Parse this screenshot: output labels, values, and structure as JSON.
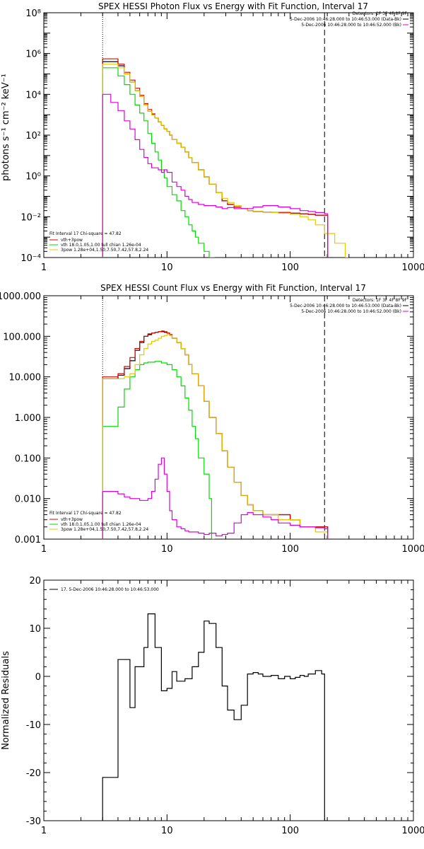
{
  "colors": {
    "data": "#000000",
    "total": "#e00000",
    "thermal": "#00dd00",
    "powerlaw": "#e6c800",
    "background": "#dd00dd",
    "frame": "#000000"
  },
  "chart_data": [
    {
      "type": "line",
      "title": "SPEX HESSI Photon Flux vs Energy with Fit Function, Interval 17",
      "xlabel": "",
      "ylabel": "photons s⁻¹ cm⁻² keV⁻¹",
      "xscale": "log",
      "yscale": "log",
      "xlim": [
        1,
        1000
      ],
      "ylim": [
        0.0001,
        100000000
      ],
      "xticks": [
        1,
        10,
        100,
        1000
      ],
      "xtick_labels": [
        "1",
        "10",
        "100",
        "1000"
      ],
      "yticks": [
        0.0001,
        0.01,
        1,
        100,
        10000,
        1000000,
        100000000
      ],
      "ytick_labels": [
        "10⁻⁴",
        "10⁻²",
        "10⁰",
        "10²",
        "10⁴",
        "10⁶",
        "10⁸"
      ],
      "energy_range": [
        3,
        190
      ],
      "legend_top_right": [
        "Detectors: 1F 3F 4F 8F 9F",
        "5-Dec-2006 10:46:28.000 to 10:46:53.000 (Data-Bk)",
        "5-Dec-2006 10:46:28.000 to 10:46:52.000 (Bk)"
      ],
      "legend_bottom_left": [
        "Fit Interval 17   Chi-square = 47.82",
        "vth+3pow",
        "vth 18.0,1.05,1.00  full chian 1.26e-04",
        "3pow 1.28e+04,1.50,7.50,7.42,57.8,2.24"
      ],
      "series": [
        {
          "name": "Data-Bk",
          "color": "#000000",
          "x": [
            3,
            3.5,
            4,
            4.5,
            5,
            5.5,
            6,
            6.5,
            7,
            7.5,
            8,
            8.5,
            9,
            9.5,
            10,
            10.5,
            11,
            12,
            13,
            14,
            15,
            16,
            18,
            20,
            22,
            25,
            28,
            31,
            35,
            40,
            45,
            50,
            60,
            70,
            80,
            100,
            120,
            140,
            160,
            190
          ],
          "values": [
            400000,
            400000,
            250000,
            100000,
            40000,
            15000,
            8000,
            3000,
            1500,
            1000,
            700,
            450,
            300,
            200,
            150,
            100,
            60,
            40,
            25,
            15,
            8,
            4.5,
            2,
            0.9,
            0.4,
            0.15,
            0.06,
            0.04,
            0.03,
            0.025,
            0.02,
            0.018,
            0.017,
            0.016,
            0.016,
            0.015,
            0.014,
            0.013,
            0.012,
            0.012
          ]
        },
        {
          "name": "vth+3pow",
          "color": "#e00000",
          "x": [
            3,
            3.5,
            4,
            4.5,
            5,
            5.5,
            6,
            6.5,
            7,
            7.5,
            8,
            8.5,
            9,
            9.5,
            10,
            10.5,
            11,
            12,
            13,
            14,
            15,
            16,
            18,
            20,
            22,
            25,
            28,
            31,
            35,
            40,
            45,
            50,
            60,
            70,
            80,
            100,
            120,
            140,
            160,
            190
          ],
          "values": [
            550000,
            550000,
            300000,
            120000,
            50000,
            20000,
            9000,
            3500,
            1800,
            1100,
            700,
            450,
            300,
            200,
            150,
            100,
            60,
            40,
            25,
            15,
            8,
            4.5,
            2,
            0.9,
            0.4,
            0.15,
            0.06,
            0.04,
            0.03,
            0.025,
            0.02,
            0.018,
            0.017,
            0.016,
            0.016,
            0.015,
            0.014,
            0.013,
            0.012,
            0.012
          ]
        },
        {
          "name": "vth",
          "color": "#00dd00",
          "x": [
            3,
            3.5,
            4,
            4.5,
            5,
            5.5,
            6,
            6.5,
            7,
            7.5,
            8,
            8.5,
            9,
            9.5,
            10,
            11,
            12,
            13,
            14,
            15,
            16,
            17,
            18,
            20,
            22,
            23
          ],
          "values": [
            200000,
            200000,
            80000,
            30000,
            10000,
            3000,
            1200,
            500,
            120,
            40,
            15,
            6,
            2,
            0.8,
            0.3,
            0.12,
            0.06,
            0.02,
            0.01,
            0.004,
            0.002,
            0.001,
            0.0005,
            0.0002,
            8e-05,
            3e-05
          ]
        },
        {
          "name": "3pow",
          "color": "#e6c800",
          "x": [
            3,
            3.5,
            4,
            4.5,
            5,
            5.5,
            6,
            6.5,
            7,
            7.5,
            8,
            8.5,
            9,
            9.5,
            10,
            10.5,
            11,
            12,
            13,
            14,
            15,
            16,
            18,
            20,
            22,
            25,
            28,
            31,
            35,
            40,
            45,
            50,
            60,
            70,
            80,
            100,
            120,
            140,
            160,
            190,
            230,
            280
          ],
          "values": [
            300000,
            300000,
            200000,
            100000,
            40000,
            15000,
            8000,
            3000,
            1500,
            1000,
            700,
            450,
            300,
            200,
            150,
            100,
            60,
            40,
            25,
            15,
            8,
            4.5,
            2,
            0.9,
            0.4,
            0.15,
            0.08,
            0.05,
            0.035,
            0.025,
            0.02,
            0.018,
            0.017,
            0.016,
            0.015,
            0.013,
            0.01,
            0.007,
            0.004,
            0.0015,
            0.0005,
            0.0001
          ]
        },
        {
          "name": "Bk",
          "color": "#dd00dd",
          "x": [
            3,
            3.5,
            4,
            4.5,
            5,
            5.5,
            6,
            6.5,
            7,
            7.5,
            8,
            8.5,
            9,
            9.5,
            10,
            10.5,
            11,
            12,
            13,
            14,
            15,
            16,
            18,
            20,
            22,
            25,
            28,
            31,
            35,
            40,
            45,
            50,
            60,
            70,
            80,
            100,
            120,
            140,
            160,
            190
          ],
          "values": [
            10000,
            4000,
            1600,
            500,
            200,
            60,
            20,
            8,
            4,
            2.5,
            2.5,
            2,
            1.5,
            2,
            1.5,
            1.5,
            0.5,
            0.3,
            0.2,
            0.1,
            0.07,
            0.05,
            0.04,
            0.035,
            0.035,
            0.03,
            0.025,
            0.028,
            0.025,
            0.025,
            0.025,
            0.03,
            0.035,
            0.035,
            0.03,
            0.025,
            0.02,
            0.018,
            0.016,
            0.014
          ]
        }
      ]
    },
    {
      "type": "line",
      "title": "SPEX HESSI Count Flux vs Energy with Fit Function, Interval 17",
      "xlabel": "",
      "ylabel": "",
      "xscale": "log",
      "yscale": "log",
      "xlim": [
        1,
        1000
      ],
      "ylim": [
        0.001,
        1000
      ],
      "xticks": [
        1,
        10,
        100,
        1000
      ],
      "xtick_labels": [
        "1",
        "10",
        "100",
        "1000"
      ],
      "yticks": [
        0.001,
        0.01,
        0.1,
        1,
        10,
        100,
        1000
      ],
      "ytick_labels": [
        "0.001",
        "0.010",
        "0.100",
        "1.000",
        "10.000",
        "100.000",
        "1000.000"
      ],
      "energy_range": [
        3,
        190
      ],
      "legend_top_right": [
        "Detectors: 1F 3F 4F 8F 9F",
        "5-Dec-2006 10:46:28.000 to 10:46:53.000 (Data-Bk)",
        "5-Dec-2006 10:46:28.000 to 10:46:52.000 (Bk)"
      ],
      "legend_bottom_left": [
        "Fit Interval 17   Chi-square = 47.82",
        "vth+3pow",
        "vth 18.0,1.05,1.00  full chian 1.26e-04",
        "3pow 1.28e+04,1.50,7.50,7.42,57.8,2.24"
      ],
      "series": [
        {
          "name": "Data-Bk",
          "color": "#000000",
          "x": [
            3,
            3.5,
            4,
            4.5,
            5,
            5.5,
            6,
            6.5,
            7,
            7.5,
            8,
            8.5,
            9,
            9.5,
            10,
            10.5,
            11,
            12,
            13,
            14,
            15,
            16,
            18,
            20,
            22,
            25,
            28,
            31,
            35,
            40,
            45,
            50,
            60,
            70,
            80,
            100,
            120,
            140,
            160,
            190
          ],
          "values": [
            9,
            9,
            11,
            16,
            25,
            45,
            70,
            100,
            110,
            120,
            125,
            130,
            130,
            125,
            120,
            110,
            90,
            70,
            50,
            35,
            20,
            12,
            6,
            2.5,
            1,
            0.4,
            0.15,
            0.06,
            0.025,
            0.012,
            0.007,
            0.005,
            0.004,
            0.004,
            0.004,
            0.003,
            0.002,
            0.002,
            0.002,
            0.002
          ]
        },
        {
          "name": "vth+3pow",
          "color": "#e00000",
          "x": [
            3,
            3.5,
            4,
            4.5,
            5,
            5.5,
            6,
            6.5,
            7,
            7.5,
            8,
            8.5,
            9,
            9.5,
            10,
            10.5,
            11,
            12,
            13,
            14,
            15,
            16,
            18,
            20,
            22,
            25,
            28,
            31,
            35,
            40,
            45,
            50,
            60,
            70,
            80,
            100,
            120,
            140,
            160,
            190
          ],
          "values": [
            10,
            10,
            12,
            18,
            30,
            50,
            75,
            100,
            115,
            120,
            125,
            130,
            135,
            130,
            120,
            110,
            90,
            70,
            50,
            35,
            20,
            12,
            6,
            2.5,
            1,
            0.4,
            0.15,
            0.06,
            0.025,
            0.012,
            0.007,
            0.005,
            0.004,
            0.004,
            0.004,
            0.003,
            0.002,
            0.002,
            0.002,
            0.002
          ]
        },
        {
          "name": "vth",
          "color": "#00dd00",
          "x": [
            3,
            3.5,
            4,
            4.5,
            5,
            5.5,
            6,
            6.5,
            7,
            8,
            9,
            10,
            11,
            12,
            13,
            14,
            15,
            16,
            17,
            18,
            20,
            22,
            23
          ],
          "values": [
            0.6,
            0.6,
            1.8,
            5,
            10,
            15,
            20,
            22,
            23,
            24,
            22,
            20,
            15,
            10,
            6,
            3,
            1.5,
            0.6,
            0.3,
            0.1,
            0.04,
            0.01,
            0.001
          ]
        },
        {
          "name": "3pow",
          "color": "#e6c800",
          "x": [
            3,
            3.5,
            4,
            4.5,
            5,
            5.5,
            6,
            6.5,
            7,
            7.5,
            8,
            8.5,
            9,
            9.5,
            10,
            10.5,
            11,
            12,
            13,
            14,
            15,
            16,
            18,
            20,
            22,
            25,
            28,
            31,
            35,
            40,
            45,
            50,
            60,
            70,
            80,
            100,
            120,
            140,
            160,
            190
          ],
          "values": [
            9,
            9,
            9,
            10,
            12,
            20,
            35,
            50,
            65,
            75,
            80,
            90,
            100,
            105,
            110,
            105,
            90,
            70,
            50,
            35,
            20,
            12,
            6,
            2.5,
            1,
            0.4,
            0.15,
            0.06,
            0.025,
            0.012,
            0.007,
            0.005,
            0.004,
            0.004,
            0.003,
            0.003,
            0.002,
            0.002,
            0.0015,
            0.0015
          ]
        },
        {
          "name": "Bk",
          "color": "#dd00dd",
          "x": [
            3,
            3.5,
            4,
            4.5,
            5,
            5.5,
            6,
            6.5,
            7,
            7.5,
            8,
            8.5,
            9,
            9.5,
            10,
            10.5,
            11,
            12,
            13,
            14,
            15,
            16,
            18,
            20,
            22,
            25,
            28,
            31,
            35,
            40,
            45,
            50,
            60,
            70,
            80,
            100,
            120,
            140,
            160,
            190
          ],
          "values": [
            0.015,
            0.015,
            0.013,
            0.011,
            0.01,
            0.01,
            0.009,
            0.009,
            0.01,
            0.015,
            0.03,
            0.07,
            0.1,
            0.04,
            0.015,
            0.005,
            0.003,
            0.002,
            0.0018,
            0.0016,
            0.0015,
            0.0015,
            0.0014,
            0.0013,
            0.0014,
            0.0012,
            0.0013,
            0.0014,
            0.0025,
            0.004,
            0.0045,
            0.004,
            0.0035,
            0.003,
            0.0025,
            0.0022,
            0.002,
            0.002,
            0.0019,
            0.0018
          ]
        }
      ]
    },
    {
      "type": "line",
      "title": "",
      "xlabel": "",
      "ylabel": "Normalized Residuals",
      "xscale": "log",
      "yscale": "linear",
      "xlim": [
        1,
        1000
      ],
      "ylim": [
        -30,
        20
      ],
      "xticks": [
        1,
        10,
        100,
        1000
      ],
      "xtick_labels": [
        "1",
        "10",
        "100",
        "1000"
      ],
      "yticks": [
        -30,
        -20,
        -10,
        0,
        10,
        20
      ],
      "ytick_labels": [
        "-30",
        "-20",
        "-10",
        "0",
        "10",
        "20"
      ],
      "legend_top_left": [
        "17.  5-Dec-2006 10:46:28.000 to 10:46:53.000"
      ],
      "series": [
        {
          "name": "",
          "color": "#000000",
          "x": [
            3,
            4,
            4.5,
            5,
            5.5,
            6,
            6.5,
            7,
            7.5,
            8,
            9,
            10,
            11,
            12,
            14,
            16,
            18,
            20,
            22,
            25,
            28,
            31,
            35,
            40,
            45,
            50,
            55,
            60,
            70,
            80,
            90,
            100,
            110,
            120,
            130,
            140,
            160,
            180,
            190
          ],
          "values": [
            -21,
            3.5,
            3.5,
            -6.5,
            2,
            2,
            6,
            13,
            13,
            6,
            -3,
            -2.5,
            1,
            -1,
            -0.5,
            2,
            5,
            11.5,
            11,
            6,
            -2,
            -7,
            -9,
            -6,
            0.5,
            0.8,
            0.5,
            0,
            0.2,
            -0.5,
            0,
            -0.5,
            -0.2,
            0.2,
            0,
            0.5,
            1.2,
            0.5,
            -30
          ]
        }
      ]
    }
  ]
}
